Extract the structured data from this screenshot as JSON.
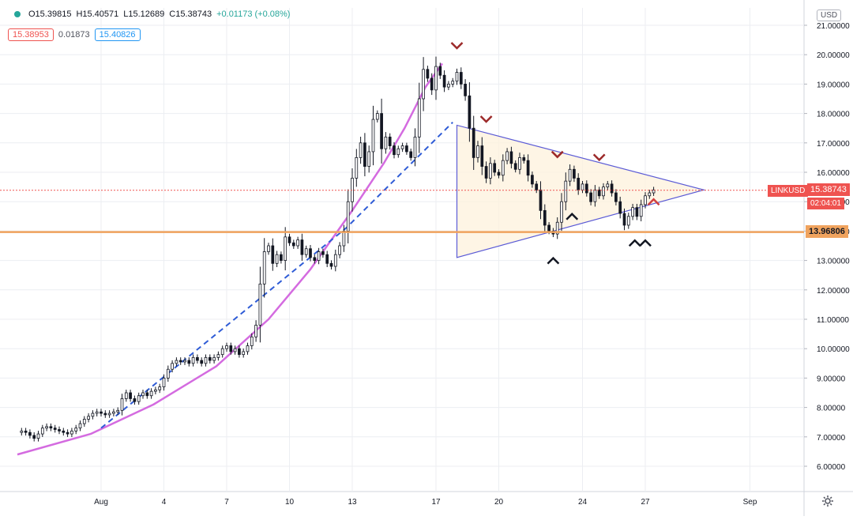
{
  "legend": {
    "open": "O15.39815",
    "high": "H15.40571",
    "low": "L15.12689",
    "close": "C15.38743",
    "change": "+0.01173 (+0.08%)"
  },
  "quote": {
    "bid": "15.38953",
    "spread": "0.01873",
    "ask": "15.40826"
  },
  "currency_button": "USD",
  "symbol": "LINKUSD",
  "last_price_label": "15.38743",
  "countdown_label": "02:04:01",
  "support_price_label": "13.96806",
  "colors": {
    "up": "#26a69a",
    "bar": "#131722",
    "last_price": "#ef5350",
    "support": "#f0a35e",
    "triangle": "#5b5bd6",
    "curve": "#d46be0",
    "dashed": "#2f5cd6"
  },
  "chart_data": {
    "type": "candlestick",
    "symbol": "LINKUSD",
    "y_axis": {
      "min": 5.5,
      "max": 21.3,
      "ticks": [
        "21.00000",
        "20.00000",
        "19.00000",
        "18.00000",
        "17.00000",
        "16.00000",
        "15.00000",
        "14.00000",
        "13.00000",
        "12.00000",
        "11.00000",
        "10.00000",
        "9.00000",
        "8.00000",
        "7.00000",
        "6.00000"
      ]
    },
    "x_axis": {
      "ticks": [
        {
          "label": "Aug",
          "day": 1
        },
        {
          "label": "4",
          "day": 4
        },
        {
          "label": "7",
          "day": 7
        },
        {
          "label": "10",
          "day": 10
        },
        {
          "label": "13",
          "day": 13
        },
        {
          "label": "17",
          "day": 17
        },
        {
          "label": "20",
          "day": 20
        },
        {
          "label": "24",
          "day": 24
        },
        {
          "label": "27",
          "day": 27
        },
        {
          "label": "Sep",
          "day": 32
        }
      ]
    },
    "close_series": [
      [
        -2.8,
        7.2
      ],
      [
        -2.6,
        7.15
      ],
      [
        -2.4,
        7.05
      ],
      [
        -2.2,
        6.95
      ],
      [
        -2.0,
        7.1
      ],
      [
        -1.8,
        7.3
      ],
      [
        -1.6,
        7.35
      ],
      [
        -1.4,
        7.3
      ],
      [
        -1.2,
        7.25
      ],
      [
        -1.0,
        7.2
      ],
      [
        -0.8,
        7.15
      ],
      [
        -0.6,
        7.1
      ],
      [
        -0.4,
        7.2
      ],
      [
        -0.2,
        7.3
      ],
      [
        0.0,
        7.45
      ],
      [
        0.2,
        7.6
      ],
      [
        0.4,
        7.7
      ],
      [
        0.6,
        7.8
      ],
      [
        0.8,
        7.85
      ],
      [
        1.0,
        7.8
      ],
      [
        1.2,
        7.75
      ],
      [
        1.4,
        7.8
      ],
      [
        1.6,
        7.85
      ],
      [
        1.8,
        7.9
      ],
      [
        2.0,
        8.3
      ],
      [
        2.2,
        8.5
      ],
      [
        2.4,
        8.3
      ],
      [
        2.6,
        8.2
      ],
      [
        2.8,
        8.4
      ],
      [
        3.0,
        8.5
      ],
      [
        3.2,
        8.4
      ],
      [
        3.4,
        8.55
      ],
      [
        3.6,
        8.6
      ],
      [
        3.8,
        8.7
      ],
      [
        4.0,
        9.0
      ],
      [
        4.2,
        9.3
      ],
      [
        4.4,
        9.5
      ],
      [
        4.6,
        9.6
      ],
      [
        4.8,
        9.55
      ],
      [
        5.0,
        9.6
      ],
      [
        5.2,
        9.5
      ],
      [
        5.4,
        9.7
      ],
      [
        5.6,
        9.6
      ],
      [
        5.8,
        9.5
      ],
      [
        6.0,
        9.7
      ],
      [
        6.2,
        9.6
      ],
      [
        6.4,
        9.7
      ],
      [
        6.6,
        9.8
      ],
      [
        6.8,
        10.0
      ],
      [
        7.0,
        10.1
      ],
      [
        7.2,
        9.9
      ],
      [
        7.4,
        10.0
      ],
      [
        7.6,
        9.8
      ],
      [
        7.8,
        9.9
      ],
      [
        8.0,
        10.1
      ],
      [
        8.2,
        10.4
      ],
      [
        8.4,
        10.8
      ],
      [
        8.6,
        12.2
      ],
      [
        8.8,
        13.3
      ],
      [
        9.0,
        13.5
      ],
      [
        9.2,
        12.9
      ],
      [
        9.4,
        13.2
      ],
      [
        9.6,
        13.0
      ],
      [
        9.8,
        13.8
      ],
      [
        10.0,
        13.6
      ],
      [
        10.2,
        13.5
      ],
      [
        10.4,
        13.7
      ],
      [
        10.6,
        13.2
      ],
      [
        10.8,
        13.4
      ],
      [
        11.0,
        13.1
      ],
      [
        11.2,
        13.0
      ],
      [
        11.4,
        13.3
      ],
      [
        11.6,
        13.2
      ],
      [
        11.8,
        12.9
      ],
      [
        12.0,
        12.8
      ],
      [
        12.2,
        13.2
      ],
      [
        12.4,
        13.5
      ],
      [
        12.6,
        14.0
      ],
      [
        12.8,
        15.0
      ],
      [
        13.0,
        15.8
      ],
      [
        13.2,
        16.5
      ],
      [
        13.4,
        17.0
      ],
      [
        13.6,
        16.2
      ],
      [
        13.8,
        16.7
      ],
      [
        14.0,
        17.8
      ],
      [
        14.2,
        18.0
      ],
      [
        14.4,
        16.8
      ],
      [
        14.6,
        17.2
      ],
      [
        14.8,
        16.9
      ],
      [
        15.0,
        16.6
      ],
      [
        15.2,
        16.8
      ],
      [
        15.4,
        16.9
      ],
      [
        15.6,
        16.7
      ],
      [
        15.8,
        16.5
      ],
      [
        16.0,
        17.2
      ],
      [
        16.2,
        18.5
      ],
      [
        16.4,
        19.5
      ],
      [
        16.6,
        19.2
      ],
      [
        16.8,
        18.8
      ],
      [
        17.0,
        19.6
      ],
      [
        17.2,
        19.3
      ],
      [
        17.4,
        18.9
      ],
      [
        17.6,
        19.0
      ],
      [
        17.8,
        19.1
      ],
      [
        18.0,
        19.4
      ],
      [
        18.2,
        19.0
      ],
      [
        18.4,
        18.6
      ],
      [
        18.6,
        17.5
      ],
      [
        18.8,
        16.5
      ],
      [
        19.0,
        16.9
      ],
      [
        19.2,
        16.2
      ],
      [
        19.4,
        15.8
      ],
      [
        19.6,
        16.3
      ],
      [
        19.8,
        16.0
      ],
      [
        20.0,
        15.9
      ],
      [
        20.2,
        16.4
      ],
      [
        20.4,
        16.7
      ],
      [
        20.6,
        16.3
      ],
      [
        20.8,
        16.1
      ],
      [
        21.0,
        16.5
      ],
      [
        21.2,
        16.4
      ],
      [
        21.4,
        15.9
      ],
      [
        21.6,
        15.6
      ],
      [
        21.8,
        15.4
      ],
      [
        22.0,
        14.7
      ],
      [
        22.2,
        14.2
      ],
      [
        22.4,
        14.0
      ],
      [
        22.6,
        13.9
      ],
      [
        22.8,
        14.3
      ],
      [
        23.0,
        15.0
      ],
      [
        23.2,
        15.7
      ],
      [
        23.4,
        16.1
      ],
      [
        23.6,
        15.8
      ],
      [
        23.8,
        15.4
      ],
      [
        24.0,
        15.6
      ],
      [
        24.2,
        15.3
      ],
      [
        24.4,
        15.0
      ],
      [
        24.6,
        15.4
      ],
      [
        24.8,
        15.2
      ],
      [
        25.0,
        15.5
      ],
      [
        25.2,
        15.6
      ],
      [
        25.4,
        15.3
      ],
      [
        25.6,
        15.0
      ],
      [
        25.8,
        14.6
      ],
      [
        26.0,
        14.2
      ],
      [
        26.2,
        14.5
      ],
      [
        26.4,
        14.8
      ],
      [
        26.6,
        14.5
      ],
      [
        26.8,
        14.9
      ],
      [
        27.0,
        15.2
      ],
      [
        27.2,
        15.3
      ],
      [
        27.4,
        15.4
      ]
    ],
    "horizontal_lines": [
      {
        "price": 13.96806
      },
      {
        "price": 15.38743
      }
    ],
    "annotations": {
      "triangle": [
        [
          18.0,
          17.6
        ],
        [
          18.0,
          13.1
        ],
        [
          29.8,
          15.4
        ]
      ],
      "exponential_curve": [
        [
          -3.0,
          6.4
        ],
        [
          0.5,
          7.1
        ],
        [
          3.5,
          8.1
        ],
        [
          6.5,
          9.4
        ],
        [
          9.0,
          11.0
        ],
        [
          11.0,
          12.7
        ],
        [
          13.0,
          14.7
        ],
        [
          14.5,
          16.3
        ],
        [
          15.5,
          17.5
        ],
        [
          16.5,
          18.9
        ],
        [
          17.3,
          19.7
        ]
      ],
      "dashed_trend": [
        [
          1.0,
          7.3
        ],
        [
          12.7,
          14.1
        ],
        [
          17.8,
          17.7
        ]
      ],
      "tops": [
        18.0,
        19.4,
        22.8,
        24.8
      ],
      "bottoms": [
        22.6,
        23.5,
        26.5,
        27.0
      ],
      "small_down_mark": [
        27.4,
        15.0
      ]
    }
  }
}
